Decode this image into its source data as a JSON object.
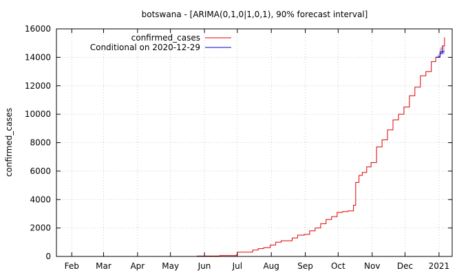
{
  "chart_data": {
    "type": "line",
    "title": "botswana -  [ARIMA(0,1,0|1,0,1), 90% forecast interval]",
    "xlabel": "",
    "ylabel": "confirmed_cases",
    "x_tick_labels": [
      "Feb",
      "Mar",
      "Apr",
      "May",
      "Jun",
      "Jul",
      "Aug",
      "Sep",
      "Oct",
      "Nov",
      "Dec",
      "2021"
    ],
    "x_ticks": [
      "2020-02-01",
      "2020-03-01",
      "2020-04-01",
      "2020-05-01",
      "2020-06-01",
      "2020-07-01",
      "2020-08-01",
      "2020-09-01",
      "2020-10-01",
      "2020-11-01",
      "2020-12-01",
      "2021-01-01"
    ],
    "xlim": [
      "2020-01-18",
      "2021-01-13"
    ],
    "ylim": [
      0,
      16000
    ],
    "y_ticks": [
      0,
      2000,
      4000,
      6000,
      8000,
      10000,
      12000,
      14000,
      16000
    ],
    "grid": true,
    "legend_position": "top-left",
    "colors": {
      "confirmed": "#e00000",
      "conditional": "#0000dd",
      "interval": "#9999ee"
    },
    "series": [
      {
        "name": "confirmed_cases",
        "x": [
          "2020-05-25",
          "2020-06-15",
          "2020-06-30",
          "2020-07-01",
          "2020-07-15",
          "2020-07-20",
          "2020-07-25",
          "2020-07-31",
          "2020-08-05",
          "2020-08-10",
          "2020-08-20",
          "2020-08-25",
          "2020-08-31",
          "2020-09-05",
          "2020-09-10",
          "2020-09-15",
          "2020-09-20",
          "2020-09-25",
          "2020-09-30",
          "2020-10-05",
          "2020-10-10",
          "2020-10-15",
          "2020-10-17",
          "2020-10-20",
          "2020-10-23",
          "2020-10-27",
          "2020-10-31",
          "2020-11-05",
          "2020-11-10",
          "2020-11-15",
          "2020-11-20",
          "2020-11-25",
          "2020-11-30",
          "2020-12-05",
          "2020-12-10",
          "2020-12-15",
          "2020-12-20",
          "2020-12-25",
          "2020-12-29",
          "2021-01-02",
          "2021-01-04",
          "2021-01-06"
        ],
        "y": [
          30,
          60,
          100,
          300,
          450,
          550,
          620,
          800,
          1000,
          1100,
          1300,
          1500,
          1550,
          1800,
          2000,
          2300,
          2600,
          2800,
          3100,
          3150,
          3200,
          3600,
          5200,
          5700,
          5900,
          6300,
          6600,
          7700,
          8200,
          8900,
          9600,
          10000,
          10500,
          11300,
          11900,
          12700,
          13000,
          13700,
          14000,
          14400,
          14800,
          15400
        ]
      },
      {
        "name": "Conditional on 2020-12-29",
        "x": [
          "2020-12-29",
          "2021-01-01",
          "2021-01-02",
          "2021-01-04",
          "2021-01-06"
        ],
        "y": [
          14000,
          14050,
          14300,
          14400,
          14400
        ],
        "lower": [
          14000,
          13950,
          14150,
          14200,
          14200
        ],
        "upper": [
          14000,
          14250,
          14650,
          14750,
          14800
        ]
      }
    ]
  }
}
